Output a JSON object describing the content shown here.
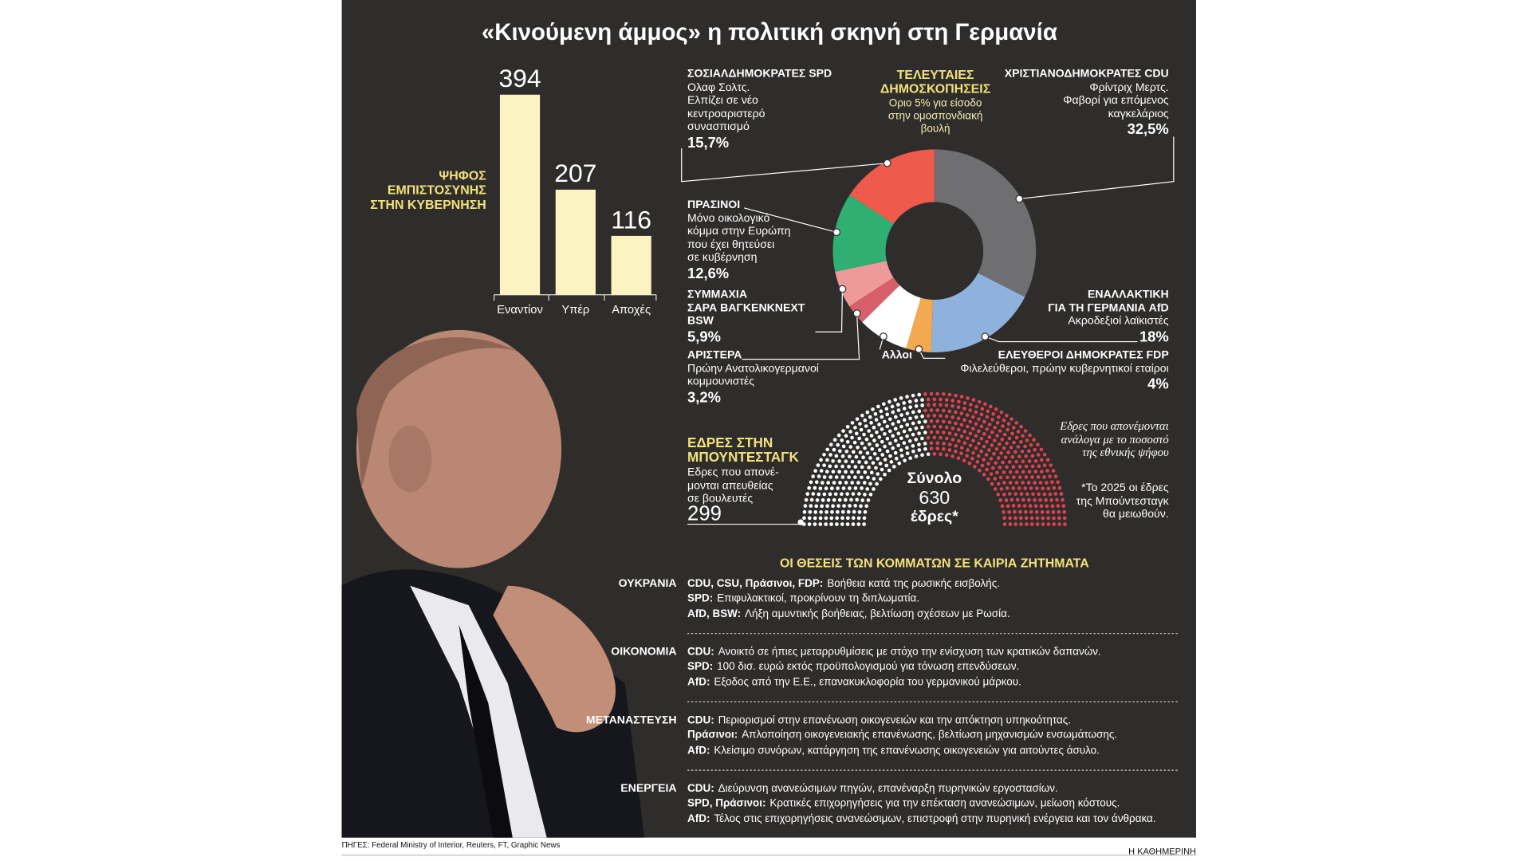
{
  "title": "«Κινούμενη άμμος» η πολιτική σκηνή στη Γερμανία",
  "chart_data": [
    {
      "type": "bar",
      "title": "ΨΗΦΟΣ\nΕΜΠΙΣΤΟΣΥΝΗΣ\nΣΤΗΝ ΚΥΒΕΡΝΗΣΗ",
      "categories": [
        "Εναντίον",
        "Υπέρ",
        "Αποχές"
      ],
      "values": [
        394,
        207,
        116
      ],
      "color": "#fbf4c2"
    },
    {
      "type": "pie",
      "title": "ΤΕΛΕΥΤΑΙΕΣ\nΔΗΜΟΣΚΟΠΗΣΕΙΣ",
      "subtitle": "Οριο 5% για είσοδο\nστην ομοσπονδιακή\nβουλή",
      "categories": [
        "ΧΡΙΣΤΙΑΝΟΔΗΜΟΚΡΑΤΕΣ CDU",
        "ΕΝΑΛΛΑΚΤΙΚΗ\nΓΙΑ ΤΗ ΓΕΡΜΑΝΙΑ AfD",
        "ΕΛΕΥΘΕΡΟΙ ΔΗΜΟΚΡΑΤΕΣ FDP",
        "Αλλοι",
        "ΑΡΙΣΤΕΡΑ",
        "ΣΥΜΜΑΧΙΑ\nΣΑΡΑ ΒΑΓΚΕΝΚΝΕΧΤ\nBSW",
        "ΠΡΑΣΙΝΟΙ",
        "ΣΟΣΙΑΛΔΗΜΟΚΡΑΤΕΣ SPD"
      ],
      "descriptions": [
        "Φρίντριχ Μερτς.\nΦαβορί για επόμενος\nκαγκελάριος",
        "Ακροδεξιοί λαϊκιστές",
        "Φιλελεύθεροι, πρώην κυβερνητικοί εταίροι",
        null,
        "Πρώην Ανατολικογερμανοί\nκομμουνιστές",
        null,
        "Μόνο οικολογικό\nκόμμα στην Ευρώπη\nπου έχει θητεύσει\nσε κυβέρνηση",
        "Ολαφ Σολτς.\nΕλπίζει σε νέο\nκεντροαριστερό\nσυνασπισμό"
      ],
      "values": [
        32.5,
        18,
        4,
        8.1,
        3.2,
        5.9,
        12.6,
        15.7
      ],
      "value_labels": [
        "32,5%",
        "18%",
        "4%",
        null,
        "3,2%",
        "5,9%",
        "12,6%",
        "15,7%"
      ],
      "colors": [
        "#6f6e70",
        "#8fb2dc",
        "#f2a950",
        "#ffffff",
        "#d65f6b",
        "#ef9a9a",
        "#2fb072",
        "#ee5a4c"
      ]
    },
    {
      "type": "parliament",
      "title": "ΕΔΡΕΣ ΣΤΗΝ\nΜΠΟΥΝΤΕΣΤΑΓΚ",
      "series": [
        {
          "name": "Εδρες που απονέ-\nμονται απευθείας\nσε βουλευτές",
          "color": "#ffffff",
          "values": [
            299
          ]
        },
        {
          "name": "Εδρες που απονέμονται\nανάλογα με το ποσοστό\nτης εθνικής ψήφου",
          "color": "#e0414f",
          "values": [
            331
          ]
        }
      ],
      "total_label": "Σύνολο",
      "total": 630,
      "total_unit": "έδρες*",
      "note": "*Το 2025 οι έδρες\nτης Μπούντεσταγκ\nθα μειωθούν."
    }
  ],
  "positions": {
    "title": "ΟΙ ΘΕΣΕΙΣ ΤΩΝ ΚΟΜΜΑΤΩΝ ΣΕ ΚΑΙΡΙΑ ΖΗΤΗΜΑΤΑ",
    "topics": [
      {
        "topic": "ΟΥΚΡΑΝΙΑ",
        "lines": [
          {
            "parties": "CDU, CSU, Πράσινοι, FDP:",
            "text": "Βοήθεια κατά της ρωσικής εισβολής."
          },
          {
            "parties": "SPD:",
            "text": "Επιφυλακτικοί, προκρίνουν τη διπλωματία."
          },
          {
            "parties": "AfD, BSW:",
            "text": "Λήξη αμυντικής βοήθειας, βελτίωση σχέσεων με Ρωσία."
          }
        ]
      },
      {
        "topic": "ΟΙΚΟΝΟΜΙΑ",
        "lines": [
          {
            "parties": "CDU:",
            "text": "Ανοικτό σε ήπιες μεταρρυθμίσεις με στόχο την ενίσχυση των κρατικών δαπανών."
          },
          {
            "parties": "SPD:",
            "text": "100 δισ. ευρώ εκτός προϋπολογισμού για τόνωση επενδύσεων."
          },
          {
            "parties": "AfD:",
            "text": "Εξοδος από την Ε.Ε., επανακυκλοφορία του γερμανικού μάρκου."
          }
        ]
      },
      {
        "topic": "ΜΕΤΑΝΑΣΤΕΥΣΗ",
        "lines": [
          {
            "parties": "CDU:",
            "text": "Περιορισμοί στην επανένωση οικογενειών και την απόκτηση υπηκοότητας."
          },
          {
            "parties": "Πράσινοι:",
            "text": "Απλοποίηση οικογενειακής επανένωσης, βελτίωση μηχανισμών ενσωμάτωσης."
          },
          {
            "parties": "AfD:",
            "text": "Κλείσιμο συνόρων, κατάργηση της επανένωσης οικογενειών για αιτούντες άσυλο."
          }
        ]
      },
      {
        "topic": "ΕΝΕΡΓΕΙΑ",
        "lines": [
          {
            "parties": "CDU:",
            "text": "Διεύρυνση ανανεώσιμων πηγών, επανέναρξη πυρηνικών εργοστασίων."
          },
          {
            "parties": "SPD, Πράσινοι:",
            "text": "Κρατικές επιχορηγήσεις για την επέκταση ανανεώσιμων, μείωση κόστους."
          },
          {
            "parties": "AfD:",
            "text": "Τέλος στις επιχορηγήσεις ανανεώσιμων, επιστροφή στην πυρηνική ενέργεια και τον άνθρακα."
          }
        ]
      }
    ]
  },
  "sources": "ΠΗΓΕΣ: Federal Ministry of Interior, Reuters, FT, Graphic News",
  "publisher": "Η ΚΑΘΗΜΕΡΙΝΗ"
}
